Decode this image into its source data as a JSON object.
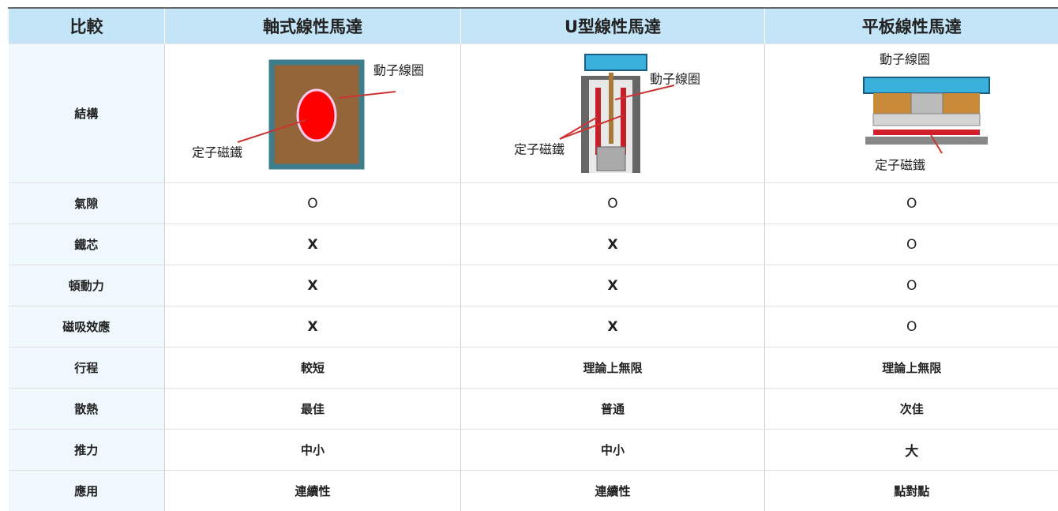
{
  "table": {
    "header": [
      "比較",
      "軸式線性馬達",
      "U型線性馬達",
      "平板線性馬達"
    ],
    "structure": {
      "label": "結構",
      "diagrams": [
        {
          "moving": "動子線圈",
          "stator": "定子磁鐵"
        },
        {
          "moving": "動子線圈",
          "stator": "定子磁鐵"
        },
        {
          "moving": "動子線圈",
          "stator": "定子磁鐵"
        }
      ]
    },
    "rows": [
      [
        "氣隙",
        "O",
        "O",
        "O"
      ],
      [
        "鐵芯",
        "X",
        "X",
        "O"
      ],
      [
        "頓動力",
        "X",
        "X",
        "O"
      ],
      [
        "磁吸效應",
        "X",
        "X",
        "O"
      ],
      [
        "行程",
        "較短",
        "理論上無限",
        "理論上無限"
      ],
      [
        "散熱",
        "最佳",
        "普通",
        "次佳"
      ],
      [
        "推力",
        "中小",
        "中小",
        "大"
      ],
      [
        "應用",
        "連續性",
        "連續性",
        "點對點"
      ]
    ]
  }
}
